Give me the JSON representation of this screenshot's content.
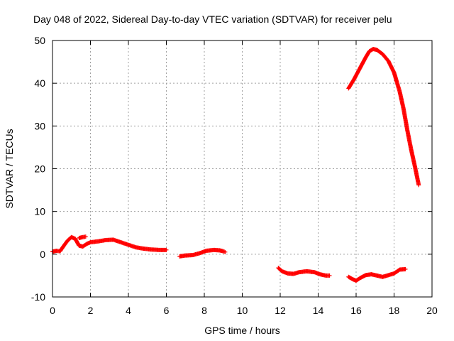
{
  "chart_data": {
    "type": "scatter",
    "title": "Day 048 of 2022, Sidereal Day-to-day VTEC variation (SDTVAR) for receiver pelu",
    "xlabel": "GPS time / hours",
    "ylabel": "SDTVAR / TECUs",
    "xlim": [
      0,
      20
    ],
    "ylim": [
      -10,
      50
    ],
    "x_ticks": [
      0,
      2,
      4,
      6,
      8,
      10,
      12,
      14,
      16,
      18,
      20
    ],
    "y_ticks": [
      -10,
      0,
      10,
      20,
      30,
      40,
      50
    ],
    "x_tick_labels": [
      "0",
      "2",
      "4",
      "6",
      "8",
      "10",
      "12",
      "14",
      "16",
      "18",
      "20"
    ],
    "y_tick_labels": [
      "-10",
      "0",
      "10",
      "20",
      "30",
      "40",
      "50"
    ],
    "grid": true,
    "marker": "plus",
    "color": "#ff0000",
    "series": [
      {
        "name": "segment-1",
        "points": [
          [
            0.0,
            0.6
          ],
          [
            0.2,
            0.8
          ],
          [
            0.4,
            0.7
          ],
          [
            0.6,
            2.0
          ],
          [
            0.8,
            3.2
          ],
          [
            1.0,
            4.0
          ],
          [
            1.2,
            3.6
          ],
          [
            1.4,
            2.0
          ],
          [
            1.6,
            1.8
          ],
          [
            1.8,
            2.4
          ],
          [
            2.0,
            2.8
          ],
          [
            2.4,
            3.0
          ],
          [
            2.8,
            3.3
          ],
          [
            3.2,
            3.4
          ],
          [
            3.6,
            2.8
          ],
          [
            4.0,
            2.2
          ],
          [
            4.4,
            1.6
          ],
          [
            4.8,
            1.3
          ],
          [
            5.2,
            1.1
          ],
          [
            5.6,
            1.0
          ],
          [
            6.0,
            1.0
          ]
        ]
      },
      {
        "name": "segment-1b",
        "points": [
          [
            1.4,
            3.8
          ],
          [
            1.6,
            4.0
          ],
          [
            1.75,
            4.1
          ]
        ]
      },
      {
        "name": "segment-2",
        "points": [
          [
            6.7,
            -0.5
          ],
          [
            7.0,
            -0.3
          ],
          [
            7.4,
            -0.2
          ],
          [
            7.8,
            0.3
          ],
          [
            8.1,
            0.8
          ],
          [
            8.5,
            1.0
          ],
          [
            8.8,
            0.9
          ],
          [
            9.0,
            0.7
          ],
          [
            9.1,
            0.5
          ]
        ]
      },
      {
        "name": "segment-3",
        "points": [
          [
            11.9,
            -3.2
          ],
          [
            12.1,
            -4.0
          ],
          [
            12.4,
            -4.5
          ],
          [
            12.7,
            -4.6
          ],
          [
            13.0,
            -4.2
          ],
          [
            13.4,
            -4.0
          ],
          [
            13.8,
            -4.2
          ],
          [
            14.1,
            -4.7
          ],
          [
            14.4,
            -5.0
          ],
          [
            14.6,
            -5.0
          ]
        ]
      },
      {
        "name": "segment-4",
        "points": [
          [
            15.6,
            -5.3
          ],
          [
            15.8,
            -5.8
          ],
          [
            16.0,
            -6.2
          ],
          [
            16.2,
            -5.6
          ],
          [
            16.5,
            -4.9
          ],
          [
            16.8,
            -4.7
          ],
          [
            17.1,
            -5.0
          ],
          [
            17.4,
            -5.3
          ],
          [
            17.7,
            -4.9
          ],
          [
            18.0,
            -4.5
          ],
          [
            18.3,
            -3.6
          ],
          [
            18.6,
            -3.5
          ]
        ]
      },
      {
        "name": "segment-5",
        "points": [
          [
            15.6,
            38.8
          ],
          [
            15.9,
            41.0
          ],
          [
            16.2,
            43.5
          ],
          [
            16.5,
            46.0
          ],
          [
            16.7,
            47.5
          ],
          [
            16.9,
            48.0
          ],
          [
            17.1,
            47.8
          ],
          [
            17.4,
            46.8
          ],
          [
            17.7,
            45.2
          ],
          [
            18.0,
            42.5
          ],
          [
            18.3,
            38.0
          ],
          [
            18.5,
            34.0
          ],
          [
            18.7,
            29.0
          ],
          [
            18.9,
            24.5
          ],
          [
            19.1,
            20.5
          ],
          [
            19.3,
            16.2
          ]
        ]
      }
    ]
  }
}
